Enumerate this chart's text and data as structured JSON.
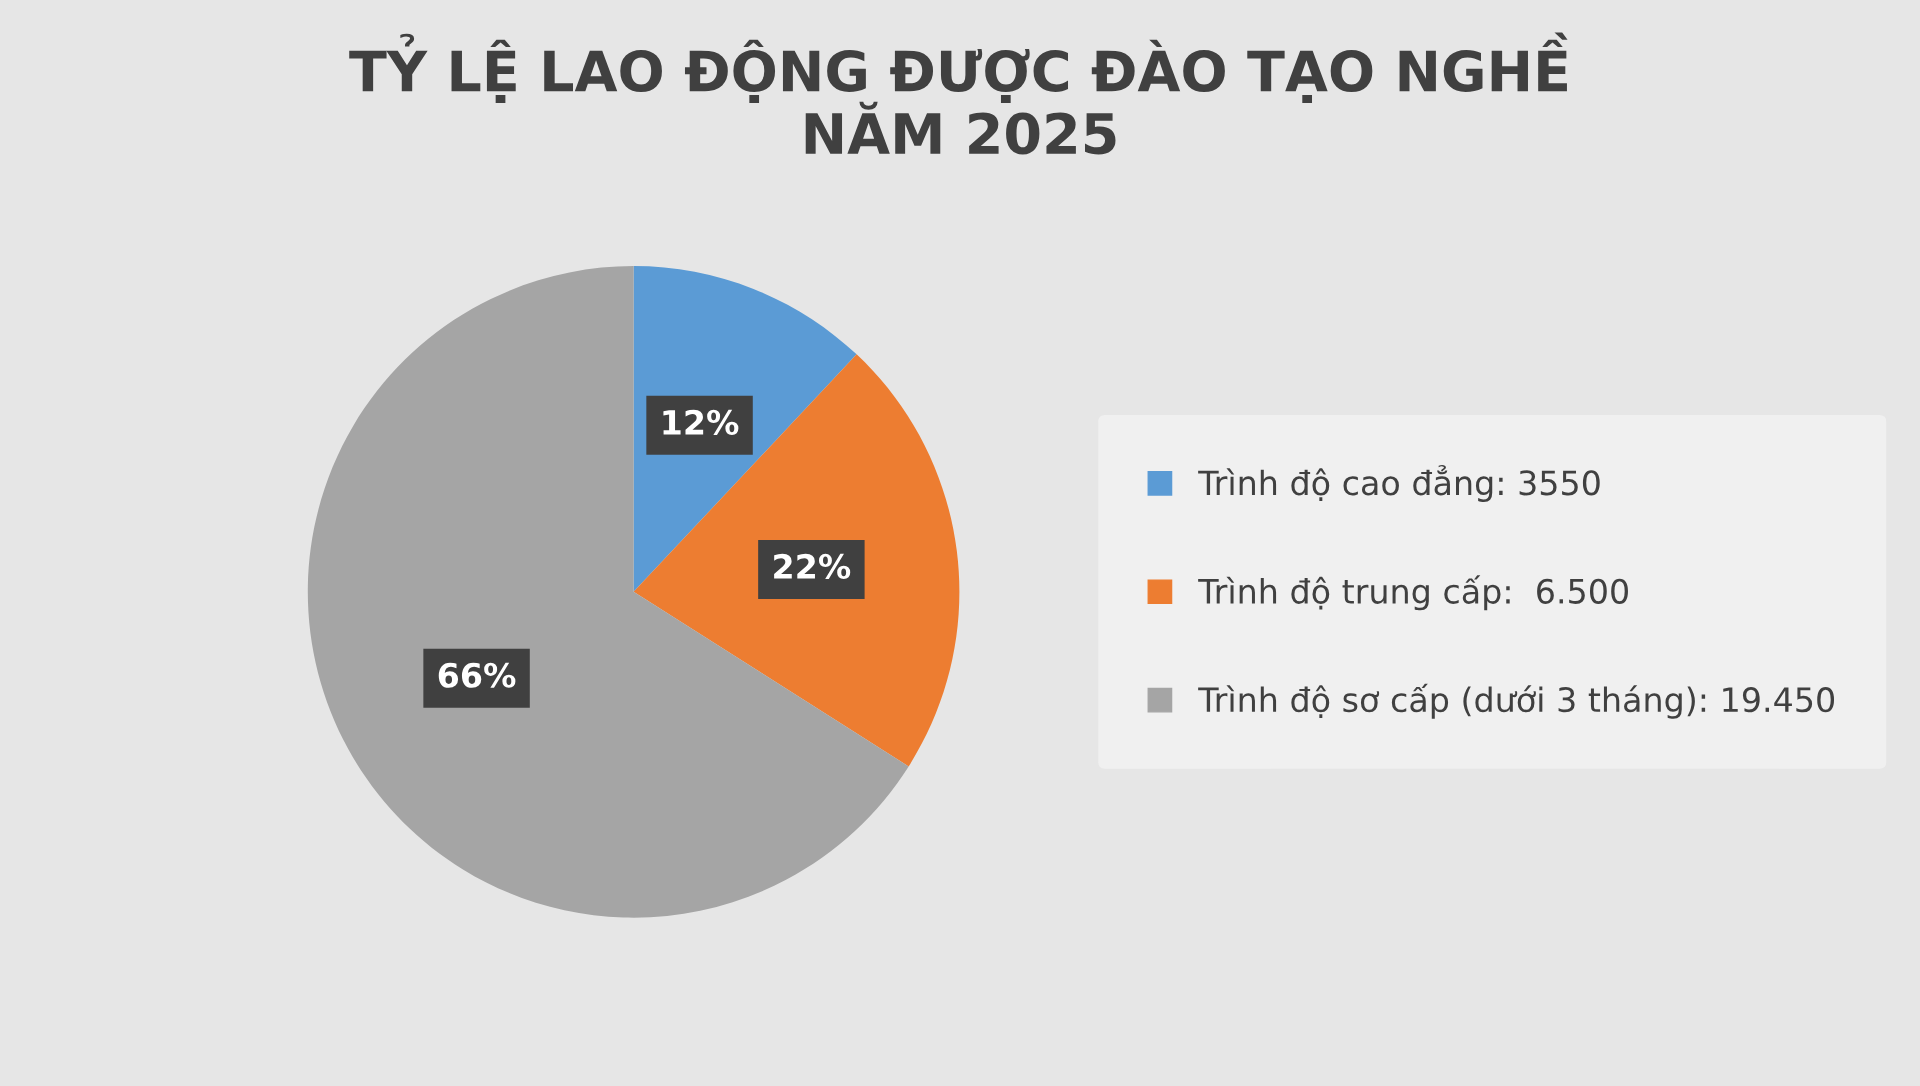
{
  "chart_data": {
    "type": "pie",
    "title": "TỶ LỆ LAO ĐỘNG ĐƯỢC ĐÀO TẠO NGHỀ\nNĂM 2025",
    "categories": [
      "Trình độ cao đẳng: 3550",
      "Trình độ trung cấp:  6.500",
      "Trình độ sơ cấp (dưới 3 tháng): 19.450"
    ],
    "values": [
      12,
      22,
      66
    ],
    "colors": [
      "#5b9bd5",
      "#ed7d31",
      "#a5a5a5"
    ],
    "value_labels": [
      "12%",
      "22%",
      "66%"
    ],
    "legend": "right"
  }
}
